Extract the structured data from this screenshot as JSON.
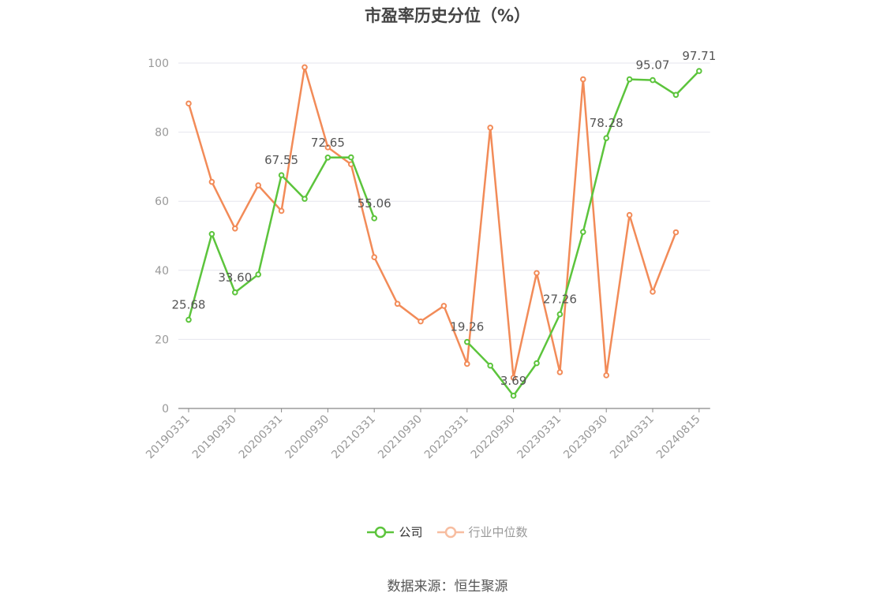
{
  "chart_data": {
    "type": "line",
    "title": "市盈率历史分位（%）",
    "ylim": [
      0,
      100
    ],
    "yticks": [
      0,
      20,
      40,
      60,
      80,
      100
    ],
    "grid": true,
    "legend_position": "bottom",
    "x": [
      "20190331",
      "20190630",
      "20190930",
      "20191231",
      "20200331",
      "20200630",
      "20200930",
      "20201231",
      "20210331",
      "20210630",
      "20210930",
      "20211231",
      "20220331",
      "20220630",
      "20220930",
      "20221231",
      "20230331",
      "20230630",
      "20230930",
      "20231231",
      "20240331",
      "20240630",
      "20240815"
    ],
    "xtick_labels": [
      "20190331",
      "20190930",
      "20200331",
      "20200930",
      "20210331",
      "20210930",
      "20220331",
      "20220930",
      "20230331",
      "20230930",
      "20240331",
      "20240815"
    ],
    "series": [
      {
        "name": "公司",
        "color": "#5cc43c",
        "values": [
          25.68,
          50.5,
          33.6,
          38.8,
          67.55,
          60.7,
          72.65,
          72.7,
          55.06,
          null,
          null,
          null,
          19.26,
          12.4,
          3.69,
          13.1,
          27.26,
          51.1,
          78.28,
          95.3,
          95.07,
          90.8,
          97.71
        ],
        "labels": {
          "0": "25.68",
          "2": "33.60",
          "4": "67.55",
          "6": "72.65",
          "8": "55.06",
          "12": "19.26",
          "14": "3.69",
          "16": "27.26",
          "18": "78.28",
          "20": "95.07",
          "22": "97.71"
        }
      },
      {
        "name": "行业中位数",
        "color": "#f28b58",
        "values": [
          88.3,
          65.6,
          52.1,
          64.6,
          57.2,
          98.8,
          75.6,
          70.7,
          43.8,
          30.3,
          25.2,
          29.7,
          12.9,
          81.3,
          8.9,
          39.2,
          10.5,
          95.3,
          9.6,
          56.0,
          33.8,
          51.0,
          null
        ]
      }
    ]
  },
  "footer": {
    "source": "数据来源：恒生聚源"
  }
}
